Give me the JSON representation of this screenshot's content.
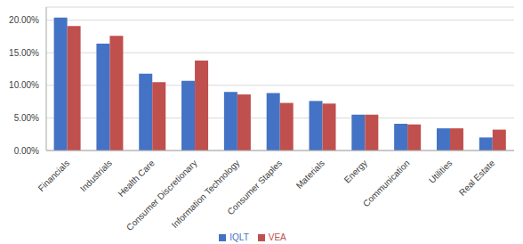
{
  "chart_data": {
    "type": "bar",
    "categories": [
      "Financials",
      "Industrials",
      "Health Care",
      "Consumer Discretionary",
      "Information Technology",
      "Consumer Staples",
      "Materials",
      "Energy",
      "Communication",
      "Utilities",
      "Real Estate"
    ],
    "series": [
      {
        "name": "IQLT",
        "color": "#4472c4",
        "values": [
          20.4,
          16.4,
          11.8,
          10.7,
          9.0,
          8.8,
          7.6,
          5.5,
          4.1,
          3.4,
          2.0
        ]
      },
      {
        "name": "VEA",
        "color": "#c0504d",
        "values": [
          19.1,
          17.6,
          10.5,
          13.8,
          8.6,
          7.3,
          7.2,
          5.5,
          4.0,
          3.4,
          3.2
        ]
      }
    ],
    "ylim": [
      0,
      22
    ],
    "yticks": [
      {
        "value": 0,
        "label": "0.00%"
      },
      {
        "value": 5,
        "label": "5.00%"
      },
      {
        "value": 10,
        "label": "10.00%"
      },
      {
        "value": 15,
        "label": "15.00%"
      },
      {
        "value": 20,
        "label": "20.00%"
      }
    ],
    "grid": true,
    "legend": "bottom"
  }
}
